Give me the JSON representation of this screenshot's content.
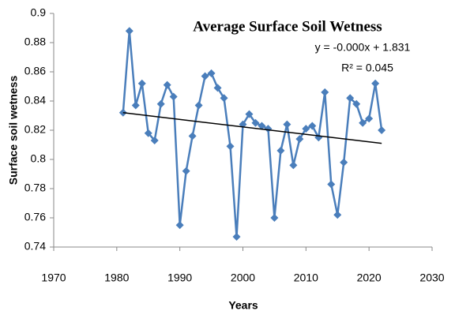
{
  "chart_data": {
    "type": "line",
    "title": "Average Surface Soil Wetness",
    "x_label": "Years",
    "y_label": "Surface soil wetness",
    "x": [
      1981,
      1982,
      1983,
      1984,
      1985,
      1986,
      1987,
      1988,
      1989,
      1990,
      1991,
      1992,
      1993,
      1994,
      1995,
      1996,
      1997,
      1998,
      1999,
      2000,
      2001,
      2002,
      2003,
      2004,
      2005,
      2006,
      2007,
      2008,
      2009,
      2010,
      2011,
      2012,
      2013,
      2014,
      2015,
      2016,
      2017,
      2018,
      2019,
      2020,
      2021,
      2022
    ],
    "series": [
      {
        "color": "#4a7ebb",
        "values": [
          0.832,
          0.888,
          0.837,
          0.852,
          0.818,
          0.813,
          0.838,
          0.851,
          0.843,
          0.755,
          0.792,
          0.816,
          0.837,
          0.857,
          0.859,
          0.849,
          0.842,
          0.809,
          0.747,
          0.824,
          0.831,
          0.825,
          0.823,
          0.821,
          0.76,
          0.806,
          0.824,
          0.796,
          0.814,
          0.821,
          0.823,
          0.815,
          0.846,
          0.783,
          0.762,
          0.798,
          0.842,
          0.838,
          0.825,
          0.828,
          0.852,
          0.82
        ]
      }
    ],
    "trendline": {
      "color": "#000000",
      "x": [
        1981,
        2022
      ],
      "values": [
        0.832,
        0.811
      ]
    },
    "annotations": [
      "y = -0.000x + 1.831",
      "R² = 0.045"
    ],
    "xlim": [
      1970,
      2030
    ],
    "xticks": [
      1970,
      1980,
      1990,
      2000,
      2010,
      2020,
      2030
    ],
    "ylim": [
      0.74,
      0.9
    ],
    "yticks": [
      0.74,
      0.76,
      0.78,
      0.8,
      0.82,
      0.84,
      0.86,
      0.88,
      0.9
    ]
  }
}
